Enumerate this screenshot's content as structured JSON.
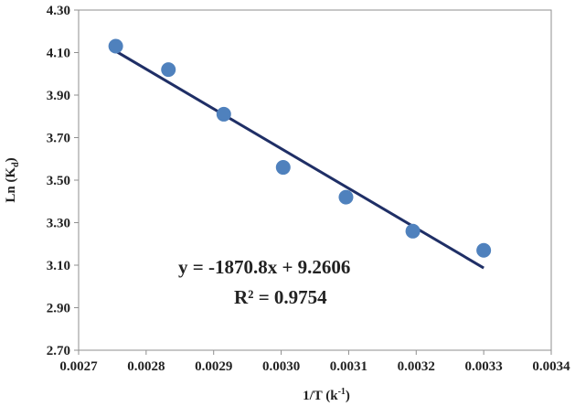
{
  "chart_data": {
    "type": "scatter",
    "title": "",
    "xlabel": "1/T (k",
    "xlabel_sup": "-1",
    "xlabel_end": ")",
    "ylabel": "Ln (K",
    "ylabel_sub": "d",
    "ylabel_end": ")",
    "xlim": [
      0.0027,
      0.0034
    ],
    "ylim": [
      2.7,
      4.3
    ],
    "xticks": [
      "0.0027",
      "0.0028",
      "0.0029",
      "0.0030",
      "0.0031",
      "0.0032",
      "0.0033",
      "0.0034"
    ],
    "yticks": [
      "2.70",
      "2.90",
      "3.10",
      "3.30",
      "3.50",
      "3.70",
      "3.90",
      "4.10",
      "4.30"
    ],
    "grid": false,
    "legend": "none",
    "marker_color": "#4f81bd",
    "line_color": "#1f2f66",
    "series": [
      {
        "x": [
          0.002755,
          0.002833,
          0.002915,
          0.003003,
          0.003096,
          0.003195,
          0.0033
        ],
        "y": [
          4.13,
          4.02,
          3.81,
          3.56,
          3.42,
          3.26,
          3.17
        ]
      }
    ],
    "trendline": {
      "slope": -1870.8,
      "intercept": 9.2606,
      "x_range": [
        0.002755,
        0.0033
      ]
    },
    "annotations": {
      "equation": "y =  -1870.8x + 9.2606",
      "r_squared": "R² = 0.9754"
    }
  }
}
